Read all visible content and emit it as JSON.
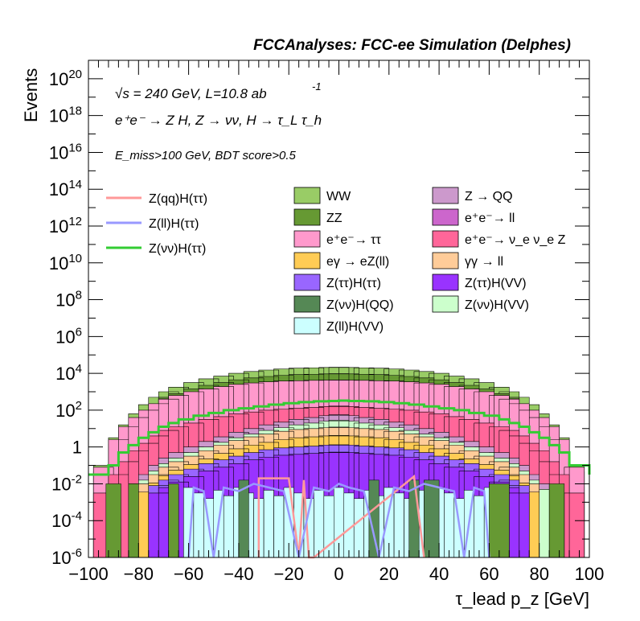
{
  "chart_data": {
    "type": "area",
    "title": "FCCAnalyses: FCC-ee Simulation (Delphes)",
    "xlabel": "τ_lead p_z [GeV]",
    "ylabel": "Events",
    "xlim": [
      -100,
      100
    ],
    "ylim": [
      1e-06,
      1e+21
    ],
    "yscale": "log",
    "stacked": true,
    "x_ticks": [
      "−100",
      "−80",
      "−60",
      "−40",
      "−20",
      "0",
      "20",
      "40",
      "60",
      "80",
      "100"
    ],
    "y_ticks": [
      {
        "base": "10",
        "exp": "-6"
      },
      {
        "base": "10",
        "exp": "-4"
      },
      {
        "base": "10",
        "exp": "-2"
      },
      {
        "base": "1",
        "exp": ""
      },
      {
        "base": "10",
        "exp": "2"
      },
      {
        "base": "10",
        "exp": "4"
      },
      {
        "base": "10",
        "exp": "6"
      },
      {
        "base": "10",
        "exp": "8"
      },
      {
        "base": "10",
        "exp": "10"
      },
      {
        "base": "10",
        "exp": "12"
      },
      {
        "base": "10",
        "exp": "14"
      },
      {
        "base": "10",
        "exp": "16"
      },
      {
        "base": "10",
        "exp": "18"
      },
      {
        "base": "10",
        "exp": "20"
      }
    ],
    "annotations": {
      "sqrt_s": "√s = 240 GeV, L=10.8 ab",
      "lumi_exp": "-1",
      "process": "e⁺e⁻ → Z H, Z → νν, H → τ_L τ_h",
      "selection": "E_miss>100 GeV, BDT score>0.5"
    },
    "legend_position": "top",
    "stack_edges_log10": {
      "x": [
        -94,
        -88,
        -84,
        -80,
        -76,
        -72,
        -68,
        -64,
        -58,
        -52,
        -46,
        -40,
        -34,
        -28,
        -22,
        -16,
        -10,
        -4,
        0,
        4,
        10,
        16,
        22,
        28,
        34,
        40,
        46,
        52,
        58,
        64,
        68,
        72,
        76,
        80,
        84,
        88,
        94
      ],
      "ww": [
        -1,
        0.5,
        1.2,
        1.8,
        2.3,
        2.7,
        3.0,
        3.25,
        3.5,
        3.7,
        3.85,
        4.0,
        4.1,
        4.18,
        4.24,
        4.28,
        4.3,
        4.32,
        4.33,
        4.32,
        4.3,
        4.28,
        4.24,
        4.18,
        4.1,
        4.0,
        3.85,
        3.7,
        3.5,
        3.25,
        3.0,
        2.7,
        2.3,
        1.8,
        1.2,
        0.5,
        -1
      ],
      "ee_tt": [
        -1.5,
        0,
        0.7,
        1.2,
        1.6,
        1.95,
        2.2,
        2.4,
        2.6,
        2.75,
        2.88,
        3.0,
        3.08,
        3.14,
        3.18,
        3.2,
        3.22,
        3.23,
        3.24,
        3.23,
        3.22,
        3.2,
        3.18,
        3.14,
        3.08,
        3.0,
        2.88,
        2.75,
        2.6,
        2.4,
        2.2,
        1.95,
        1.6,
        1.2,
        0.7,
        0,
        -1.5
      ],
      "ee_nnz": [
        -2.5,
        -1.5,
        -0.8,
        -0.2,
        0.2,
        0.6,
        0.9,
        1.1,
        1.3,
        1.5,
        1.65,
        1.8,
        1.9,
        2.0,
        2.05,
        2.1,
        2.15,
        2.2,
        2.22,
        2.2,
        2.15,
        2.1,
        2.05,
        2.0,
        1.9,
        1.8,
        1.65,
        1.5,
        1.3,
        1.1,
        0.9,
        0.6,
        0.2,
        -0.2,
        -0.8,
        -1.5,
        -2.5
      ],
      "z_qq": [
        null,
        null,
        null,
        -2,
        -1.5,
        -1,
        -0.6,
        -0.3,
        0,
        0.3,
        0.55,
        0.8,
        1.0,
        1.2,
        1.35,
        1.5,
        1.6,
        1.7,
        1.75,
        1.7,
        1.6,
        1.5,
        1.35,
        1.2,
        1.0,
        0.8,
        0.55,
        0.3,
        0,
        -0.3,
        -0.6,
        -1,
        -1.5,
        -2,
        null,
        null,
        null
      ],
      "yy_ll": [
        null,
        null,
        null,
        null,
        -2,
        -1.5,
        -1.1,
        -0.8,
        -0.5,
        -0.2,
        0.1,
        0.35,
        0.55,
        0.7,
        0.85,
        0.95,
        1.0,
        1.05,
        1.08,
        1.05,
        1.0,
        0.95,
        0.85,
        0.7,
        0.55,
        0.35,
        0.1,
        -0.2,
        -0.5,
        -0.8,
        -1.1,
        -1.5,
        -2,
        null,
        null,
        null,
        null
      ],
      "z_tt_h_vv": [
        null,
        null,
        null,
        null,
        null,
        -2.5,
        -2.2,
        -1.9,
        -1.6,
        -1.3,
        -1.1,
        -0.9,
        -0.7,
        -0.55,
        -0.45,
        -0.4,
        -0.35,
        -0.3,
        -0.28,
        -0.3,
        -0.35,
        -0.4,
        -0.45,
        -0.55,
        -0.7,
        -0.9,
        -1.1,
        -1.3,
        -1.6,
        -1.9,
        -2.2,
        -2.5,
        null,
        null,
        null,
        null,
        null
      ]
    },
    "series": [
      {
        "name": "Z(qq)H(ττ)",
        "style": "line",
        "color": "#ff9999"
      },
      {
        "name": "Z(ll)H(ττ)",
        "style": "line",
        "color": "#9999ff"
      },
      {
        "name": "Z(νν)H(ττ)",
        "style": "line",
        "color": "#33cc33",
        "x": [
          -100,
          -92,
          -88,
          -84,
          -80,
          -76,
          -72,
          -68,
          -64,
          -58,
          -52,
          -46,
          -40,
          -34,
          -28,
          -22,
          -16,
          -10,
          -4,
          0,
          4,
          10,
          16,
          22,
          28,
          34,
          40,
          46,
          52,
          58,
          64,
          68,
          72,
          76,
          80,
          84,
          88,
          92,
          100
        ],
        "y_log10": [
          -1.5,
          -1,
          -0.3,
          0.1,
          0.5,
          0.8,
          1.1,
          1.3,
          1.5,
          1.7,
          1.85,
          2.0,
          2.1,
          2.2,
          2.3,
          2.38,
          2.44,
          2.48,
          2.5,
          2.52,
          2.5,
          2.48,
          2.44,
          2.38,
          2.3,
          2.2,
          2.1,
          2.0,
          1.85,
          1.7,
          1.5,
          1.3,
          1.1,
          0.8,
          0.5,
          0.1,
          -0.3,
          -1,
          -1.5
        ]
      },
      {
        "name": "WW",
        "style": "fill",
        "color": "#99cc66"
      },
      {
        "name": "ZZ",
        "style": "fill",
        "color": "#669933"
      },
      {
        "name": "e⁺e⁻→ ττ",
        "style": "fill",
        "color": "#ff99cc"
      },
      {
        "name": "eγ → eZ(ll)",
        "style": "fill",
        "color": "#ffcc55"
      },
      {
        "name": "Z(ττ)H(ττ)",
        "style": "fill",
        "color": "#9966ff"
      },
      {
        "name": "Z(νν)H(QQ)",
        "style": "fill",
        "color": "#558855"
      },
      {
        "name": "Z(ll)H(VV)",
        "style": "fill",
        "color": "#ccffff"
      },
      {
        "name": "Z → QQ",
        "style": "fill",
        "color": "#cc99cc"
      },
      {
        "name": "e⁺e⁻→ ll",
        "style": "fill",
        "color": "#cc66cc"
      },
      {
        "name": "e⁺e⁻→ ν_e ν_e Z",
        "style": "fill",
        "color": "#ff6699"
      },
      {
        "name": "γγ → ll",
        "style": "fill",
        "color": "#ffcc99"
      },
      {
        "name": "Z(ττ)H(VV)",
        "style": "fill",
        "color": "#9933ff"
      },
      {
        "name": "Z(νν)H(VV)",
        "style": "fill",
        "color": "#ccffcc"
      }
    ]
  }
}
